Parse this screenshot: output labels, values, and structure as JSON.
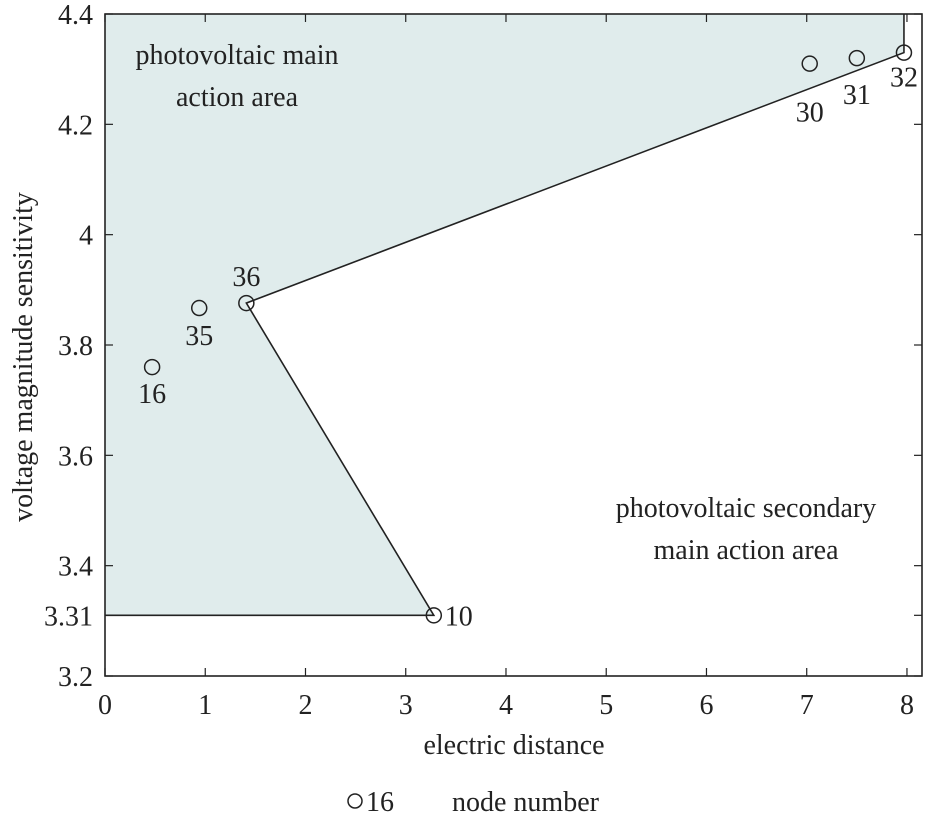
{
  "chart_data": {
    "type": "scatter",
    "xlabel": "electric distance",
    "ylabel": "voltage magnitude sensitivity",
    "xlim": [
      0,
      8.15
    ],
    "ylim": [
      3.2,
      4.4
    ],
    "x_ticks": [
      "0",
      "1",
      "2",
      "3",
      "4",
      "5",
      "6",
      "7",
      "8"
    ],
    "y_ticks": [
      "3.2",
      "3.31",
      "3.4",
      "3.6",
      "3.8",
      "4",
      "4.2",
      "4.4"
    ],
    "grid": false,
    "nodes": [
      {
        "label": "16",
        "x": 0.47,
        "y": 3.76
      },
      {
        "label": "35",
        "x": 0.94,
        "y": 3.867
      },
      {
        "label": "36",
        "x": 1.41,
        "y": 3.876
      },
      {
        "label": "10",
        "x": 3.28,
        "y": 3.31
      },
      {
        "label": "30",
        "x": 7.03,
        "y": 4.31
      },
      {
        "label": "31",
        "x": 7.5,
        "y": 4.32
      },
      {
        "label": "32",
        "x": 7.97,
        "y": 4.33
      }
    ],
    "boundary": [
      {
        "x": 0,
        "y": 3.31
      },
      {
        "x": 3.28,
        "y": 3.31
      },
      {
        "x": 1.41,
        "y": 3.876
      },
      {
        "x": 7.97,
        "y": 4.33
      },
      {
        "x": 7.97,
        "y": 4.4
      }
    ],
    "region_main": [
      {
        "x": 0,
        "y": 4.4
      },
      {
        "x": 7.97,
        "y": 4.4
      },
      {
        "x": 7.97,
        "y": 4.33
      },
      {
        "x": 1.41,
        "y": 3.876
      },
      {
        "x": 3.28,
        "y": 3.31
      },
      {
        "x": 0,
        "y": 3.31
      }
    ],
    "annotations": {
      "main_area": [
        "photovoltaic main",
        "action area"
      ],
      "secondary_area": [
        "photovoltaic secondary",
        "main action area"
      ]
    },
    "legend": {
      "marker_label": "16",
      "text": "node number"
    },
    "colors": {
      "region_fill": "#e0ecec",
      "line": "#222222",
      "axis": "#222222"
    }
  }
}
